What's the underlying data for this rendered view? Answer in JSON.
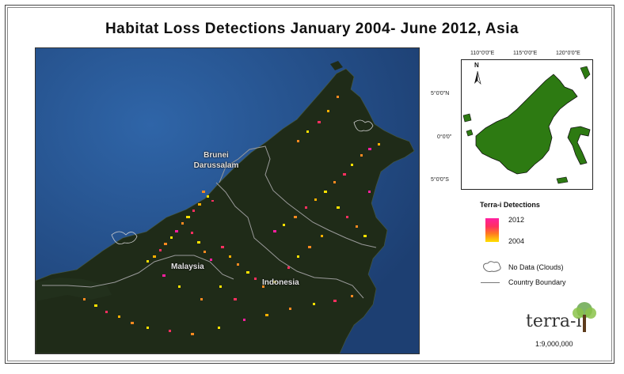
{
  "title": "Habitat Loss Detections January 2004- June 2012, Asia",
  "map_labels": {
    "brunei": "Brunei Darussalam",
    "malaysia": "Malaysia",
    "indonesia": "Indonesia"
  },
  "inset": {
    "top_ticks": [
      "110°0'0\"E",
      "115°0'0\"E",
      "120°0'0\"E"
    ],
    "left_ticks": [
      "5°0'0\"N",
      "0°0'0\"",
      "5°0'0\"S"
    ],
    "north": "N"
  },
  "legend": {
    "title": "Terra-i Detections",
    "high": "2012",
    "low": "2004",
    "no_data": "No Data (Clouds)",
    "boundary": "Country Boundary"
  },
  "logo": "terra-i",
  "scale": "1:9,000,000",
  "colors": {
    "ocean": "#27508a",
    "land": "#1e2a17",
    "inset_land": "#2d7a12",
    "detection_high": "#ff1fa0",
    "detection_low": "#ffe100"
  }
}
